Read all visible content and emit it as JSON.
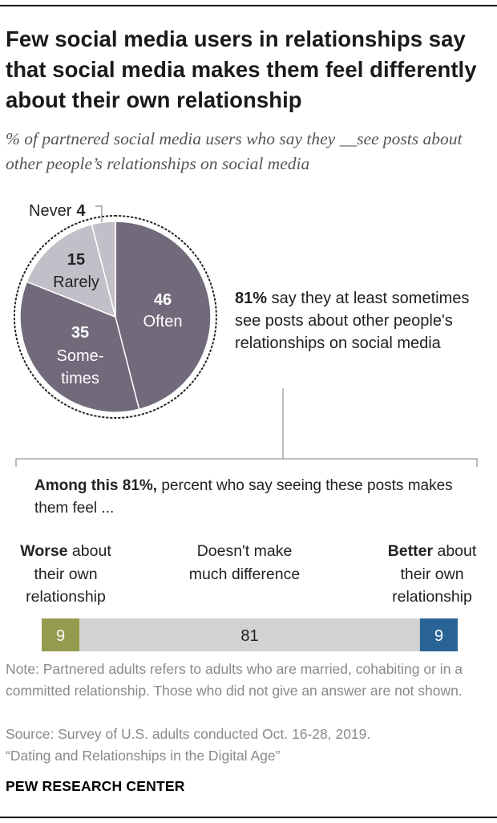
{
  "title": "Few social media users in relationships say that social media makes them feel differently about their own relationship",
  "subtitle": "% of partnered social media users who say they __see posts about other people’s relationships on social media",
  "chart_data": [
    {
      "type": "pie",
      "slices": [
        {
          "name": "Often",
          "value": 46
        },
        {
          "name": "Some-times",
          "value": 35
        },
        {
          "name": "Rarely",
          "value": 15
        },
        {
          "name": "Never",
          "value": 4
        }
      ]
    },
    {
      "type": "bar",
      "stacked": true,
      "orientation": "horizontal",
      "categories": [
        "Worse about their own relationship",
        "Doesn't make much difference",
        "Better about their own relationship"
      ],
      "values": [
        9,
        81,
        9
      ]
    }
  ],
  "pie_labels": {
    "often_value": "46",
    "often_name": "Often",
    "sometimes_value": "35",
    "sometimes_line1": "Some-",
    "sometimes_line2": "times",
    "rarely_value": "15",
    "rarely_name": "Rarely",
    "never_name": "Never",
    "never_value": "4"
  },
  "callout": {
    "bold": "81%",
    "rest": " say they at least sometimes see posts about other people's relationships on social media"
  },
  "among": {
    "bold": "Among this 81%,",
    "rest": " percent who say seeing these posts makes them feel ..."
  },
  "categories": {
    "worse_bold": "Worse",
    "worse_rest": " about their own relationship",
    "nodiff": "Doesn't make much difference",
    "better_bold": "Better",
    "better_rest": " about their own relationship"
  },
  "bar_labels": {
    "worse": "9",
    "nodiff": "81",
    "better": "9"
  },
  "colors": {
    "pie_dark": "#716a7b",
    "pie_light": "#c3bfc9",
    "worse": "#949b4e",
    "nodiff": "#d2d2d2",
    "better": "#2a6496"
  },
  "note": "Note: Partnered adults refers to adults who are married, cohabiting or in a committed relationship. Those who did not give an answer are not shown.",
  "source_line1": "Source: Survey of U.S. adults conducted Oct. 16-28, 2019.",
  "source_line2": "“Dating and Relationships in the Digital Age”",
  "brand": "PEW RESEARCH CENTER"
}
